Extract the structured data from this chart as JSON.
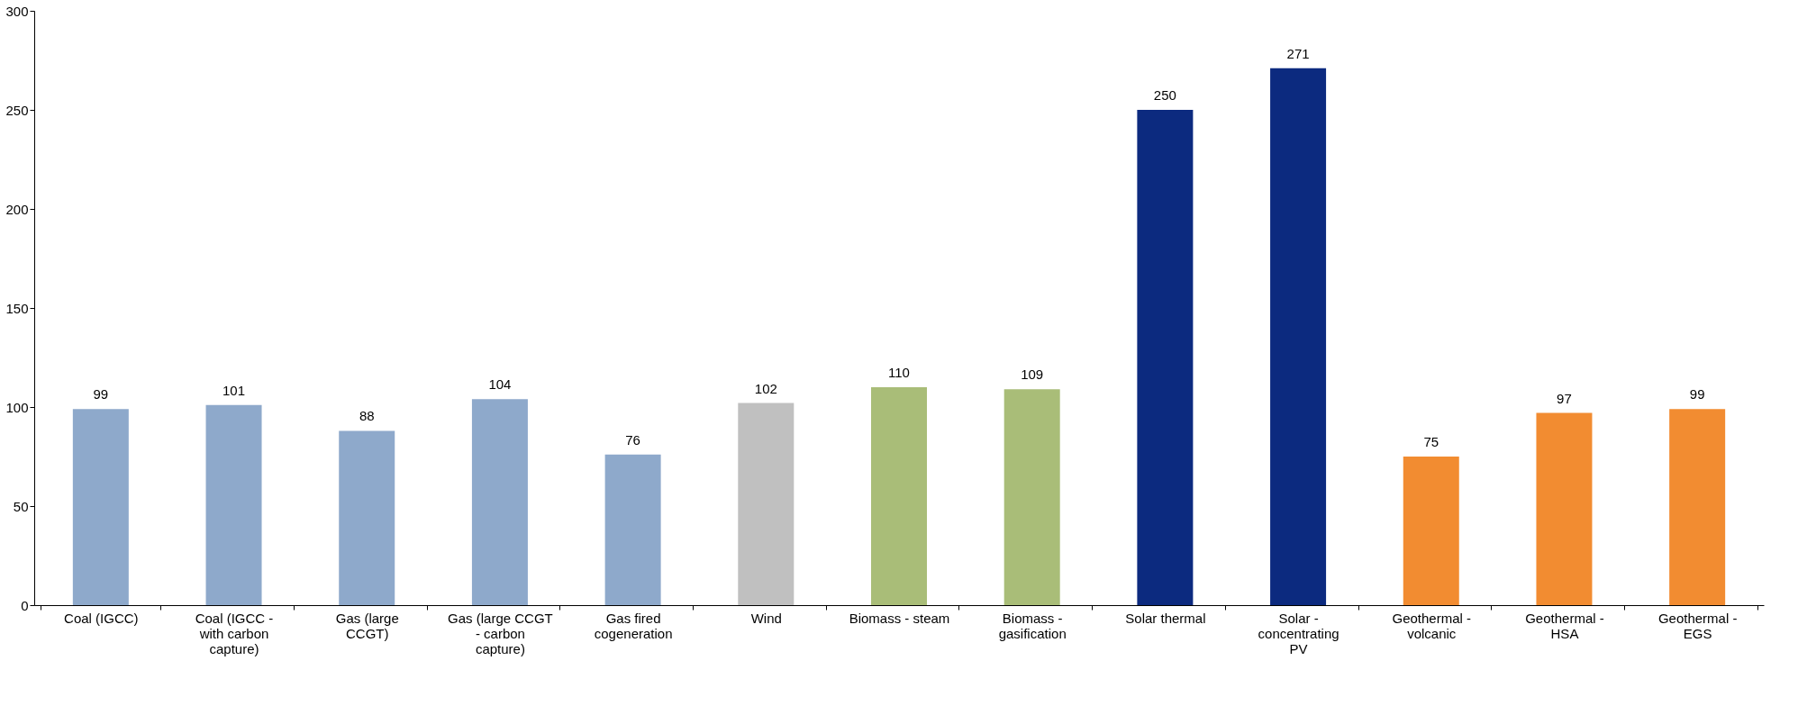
{
  "chart_data": {
    "type": "bar",
    "categories": [
      "Coal (IGCC)",
      "Coal (IGCC - with carbon capture)",
      "Gas (large CCGT)",
      "Gas (large CCGT - carbon capture)",
      "Gas fired cogeneration",
      "Wind",
      "Biomass - steam",
      "Biomass - gasification",
      "Solar thermal",
      "Solar - concentrating PV",
      "Geothermal - volcanic",
      "Geothermal - HSA",
      "Geothermal - EGS"
    ],
    "values": [
      99,
      101,
      88,
      104,
      76,
      102,
      110,
      109,
      250,
      271,
      75,
      97,
      99
    ],
    "colors": [
      "#8ea9cb",
      "#8ea9cb",
      "#8ea9cb",
      "#8ea9cb",
      "#8ea9cb",
      "#c0c0c0",
      "#a9bd78",
      "#a9bd78",
      "#0c2a7f",
      "#0c2a7f",
      "#f28c31",
      "#f28c31",
      "#f28c31"
    ],
    "ylim": [
      0,
      300
    ],
    "yticks": [
      0,
      50,
      100,
      150,
      200,
      250,
      300
    ],
    "grid": false,
    "data_labels": true
  }
}
